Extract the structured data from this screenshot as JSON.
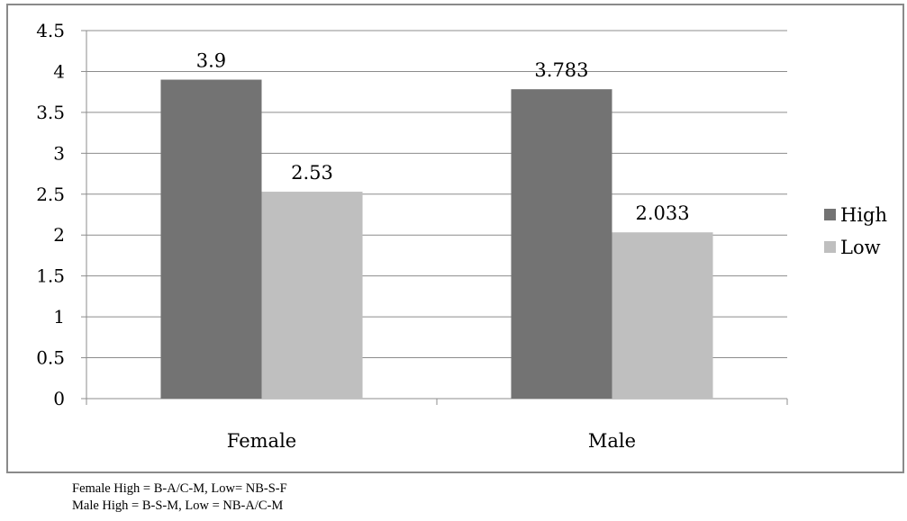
{
  "chart_data": {
    "type": "bar",
    "categories": [
      "Female",
      "Male"
    ],
    "series": [
      {
        "name": "High",
        "values": [
          3.9,
          3.783
        ],
        "labels": [
          "3.9",
          "3.783"
        ],
        "color": "#737373"
      },
      {
        "name": "Low",
        "values": [
          2.53,
          2.033
        ],
        "labels": [
          "2.53",
          "2.033"
        ],
        "color": "#bfbfbf"
      }
    ],
    "title": "",
    "xlabel": "",
    "ylabel": "",
    "ylim": [
      0,
      4.5
    ],
    "yticks": [
      "0",
      "0.5",
      "1",
      "1.5",
      "2",
      "2.5",
      "3",
      "3.5",
      "4",
      "4.5"
    ],
    "grid": true,
    "legend": "right"
  },
  "notes": {
    "line1": "Female High = B-A/C-M, Low= NB-S-F",
    "line2": "Male High = B-S-M, Low = NB-A/C-M"
  }
}
